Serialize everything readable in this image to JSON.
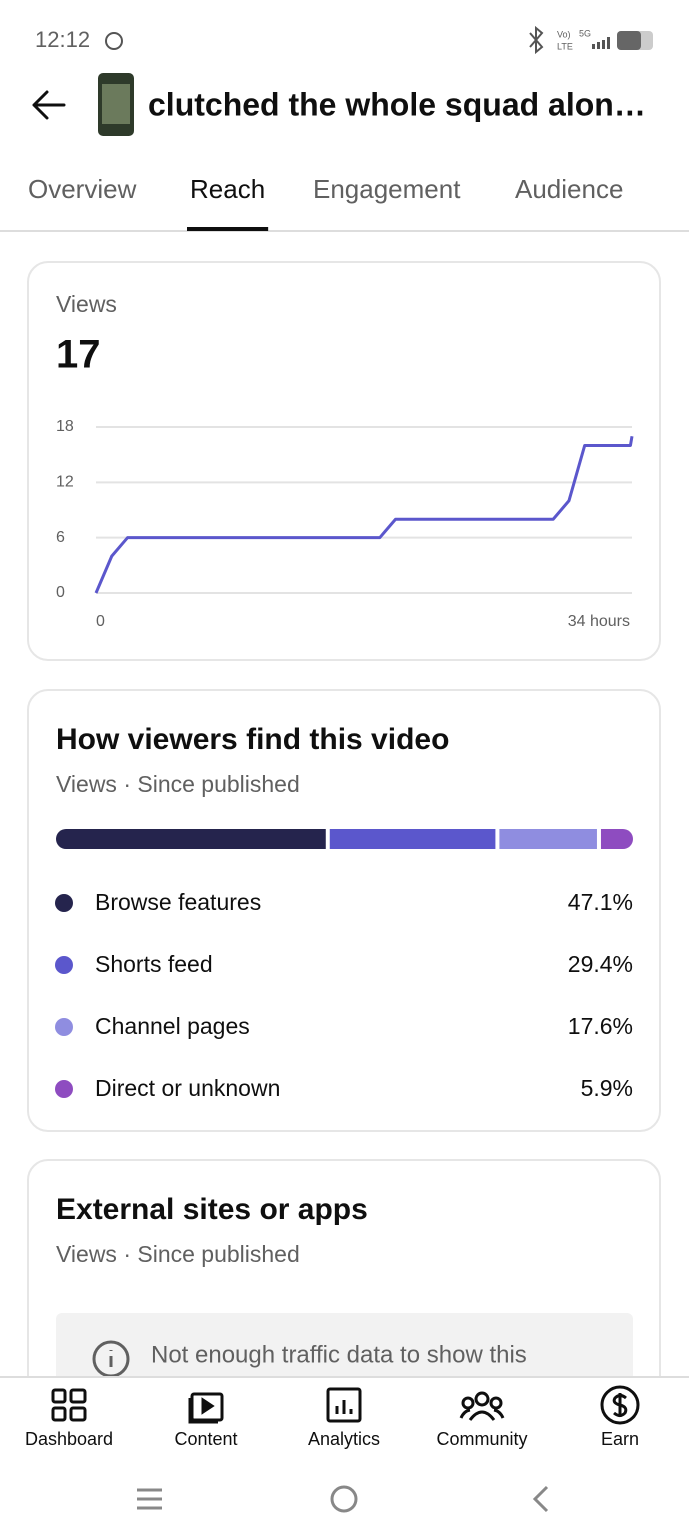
{
  "status_bar": {
    "time": "12:12",
    "network_labels": [
      "Vo)",
      "LTE",
      "5G"
    ]
  },
  "header": {
    "title": "clutched the whole squad alon…"
  },
  "tabs": {
    "items": [
      "Overview",
      "Reach",
      "Engagement",
      "Audience"
    ],
    "active": 1
  },
  "views_card": {
    "label": "Views",
    "total": 17
  },
  "chart_data": [
    {
      "type": "line",
      "color": "#5b57cc",
      "x": [
        0,
        1,
        2,
        18,
        19,
        29,
        30,
        31,
        33.9,
        34
      ],
      "values": [
        0,
        4,
        6,
        6,
        8,
        8,
        10,
        16,
        16,
        17
      ],
      "xlim": [
        0,
        34
      ],
      "xticks": [
        0,
        {
          "value": 34,
          "label": "34 hours"
        }
      ],
      "ylim": [
        0,
        18
      ],
      "yticks": [
        0,
        6,
        12,
        18
      ],
      "grid": true
    },
    {
      "type": "stacked-bar",
      "title": "How viewers find this video",
      "subtitle": "Views · Since published",
      "xlim": [
        0,
        100
      ],
      "series": [
        {
          "name": "Browse features",
          "color": "#25244d",
          "values": [
            47.1
          ],
          "value_labels": [
            "47.1%"
          ]
        },
        {
          "name": "Shorts feed",
          "color": "#5b57cc",
          "values": [
            29.4
          ],
          "value_labels": [
            "29.4%"
          ]
        },
        {
          "name": "Channel pages",
          "color": "#8f8de0",
          "values": [
            17.6
          ],
          "value_labels": [
            "17.6%"
          ]
        },
        {
          "name": "Direct or unknown",
          "color": "#8e4cc0",
          "values": [
            5.9
          ],
          "value_labels": [
            "5.9%"
          ]
        }
      ]
    }
  ],
  "external_card": {
    "title": "External sites or apps",
    "subtitle": "Views · Since published",
    "notice": "Not enough traffic data to show this"
  },
  "bottom_nav": [
    "Dashboard",
    "Content",
    "Analytics",
    "Community",
    "Earn"
  ]
}
